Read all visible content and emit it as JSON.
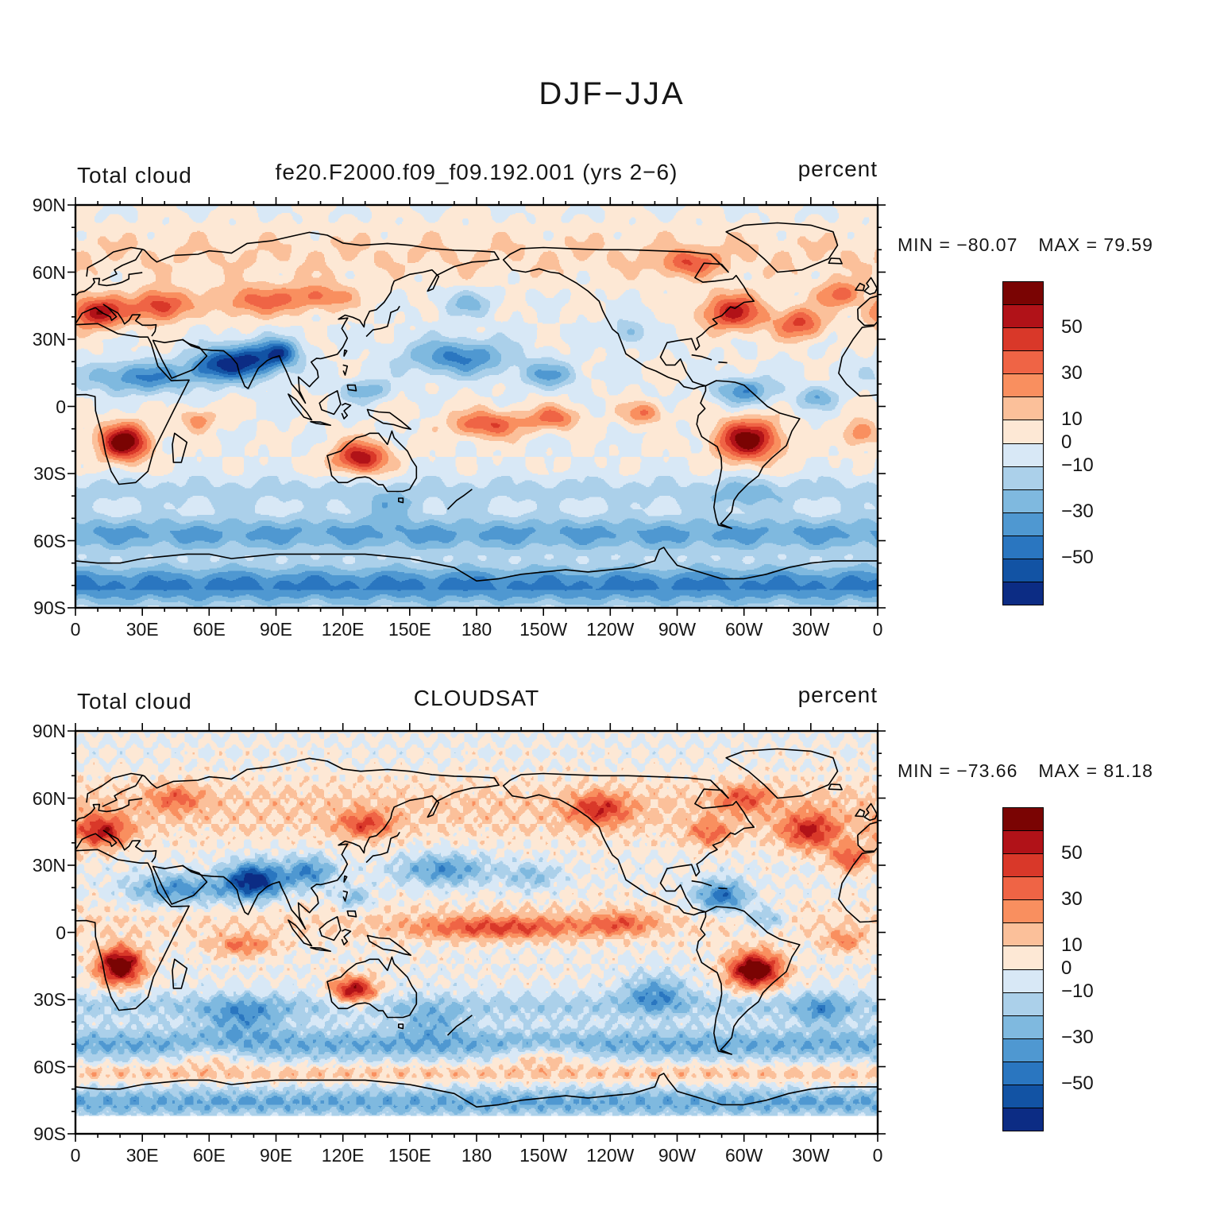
{
  "title": "DJF−JJA",
  "panels": [
    {
      "variable": "Total cloud",
      "name": "fe20.F2000.f09_f09.192.001 (yrs 2−6)",
      "units": "percent",
      "min_label": "MIN = −80.07",
      "max_label": "MAX =  79.59"
    },
    {
      "variable": "Total cloud",
      "name": "CLOUDSAT",
      "units": "percent",
      "min_label": "MIN = −73.66",
      "max_label": "MAX =  81.18"
    }
  ],
  "axis": {
    "lat_labels": [
      "90N",
      "60N",
      "30N",
      "0",
      "30S",
      "60S",
      "90S"
    ],
    "lat_values": [
      90,
      60,
      30,
      0,
      -30,
      -60,
      -90
    ],
    "lon_labels": [
      "0",
      "30E",
      "60E",
      "90E",
      "120E",
      "150E",
      "180",
      "150W",
      "120W",
      "90W",
      "60W",
      "30W",
      "0"
    ],
    "lon_values": [
      0,
      30,
      60,
      90,
      120,
      150,
      180,
      210,
      240,
      270,
      300,
      330,
      360
    ]
  },
  "colorbar": {
    "labels": [
      "50",
      "30",
      "10",
      "0",
      "−10",
      "−30",
      "−50"
    ],
    "levels": [
      -60,
      -50,
      -40,
      -30,
      -20,
      -10,
      0,
      10,
      20,
      30,
      40,
      50,
      60
    ],
    "colors_top_to_bottom": [
      "#7a0403",
      "#b11218",
      "#d93829",
      "#ef6445",
      "#f98f5f",
      "#fbc09a",
      "#fde8d5",
      "#d8e8f6",
      "#abd0ea",
      "#7fb9df",
      "#4f98d1",
      "#2a76c0",
      "#1253a4",
      "#0c2c84"
    ]
  },
  "chart_data": {
    "type": "heatmap",
    "title": "DJF−JJA",
    "variable": "Total cloud",
    "units": "percent",
    "geo": {
      "lon_range": [
        0,
        360
      ],
      "lat_range": [
        -90,
        90
      ],
      "projection": "cylindrical equidistant"
    },
    "x_tick_labels": [
      "0",
      "30E",
      "60E",
      "90E",
      "120E",
      "150E",
      "180",
      "150W",
      "120W",
      "90W",
      "60W",
      "30W",
      "0"
    ],
    "y_tick_labels": [
      "90N",
      "60N",
      "30N",
      "0",
      "30S",
      "60S",
      "90S"
    ],
    "contour_levels": [
      -60,
      -50,
      -40,
      -30,
      -20,
      -10,
      0,
      10,
      20,
      30,
      40,
      50,
      60
    ],
    "colorbar_tick_values": [
      50,
      30,
      10,
      0,
      -10,
      -30,
      -50
    ],
    "palette": "blue−white−red diverging, 14 discrete fill colors",
    "panels": [
      {
        "title": "fe20.F2000.f09_f09.192.001 (yrs 2−6)",
        "min": -80.07,
        "max": 79.59,
        "summary": "Model DJF minus JJA total cloud: strong negative (blue) band across N Africa, Arabia, India and SE Asia and the subtropical N Pacific; strong positive (red) centers over southern Africa, South America, Australia, Europe/Mediterranean and the N Atlantic/E North America; broad negative over the Southern Ocean and Antarctica."
      },
      {
        "title": "CLOUDSAT",
        "min": -73.66,
        "max": 81.18,
        "summary": "Observed CLOUDSAT DJF minus JJA: deep negative over India/S Asia and Caribbean/W Atlantic, positive over southern Africa, South America, Australia, Europe, N Atlantic and tropical Pacific ITCZ; noisier small-scale structure; no data south of about 82S (white strip)."
      }
    ]
  }
}
